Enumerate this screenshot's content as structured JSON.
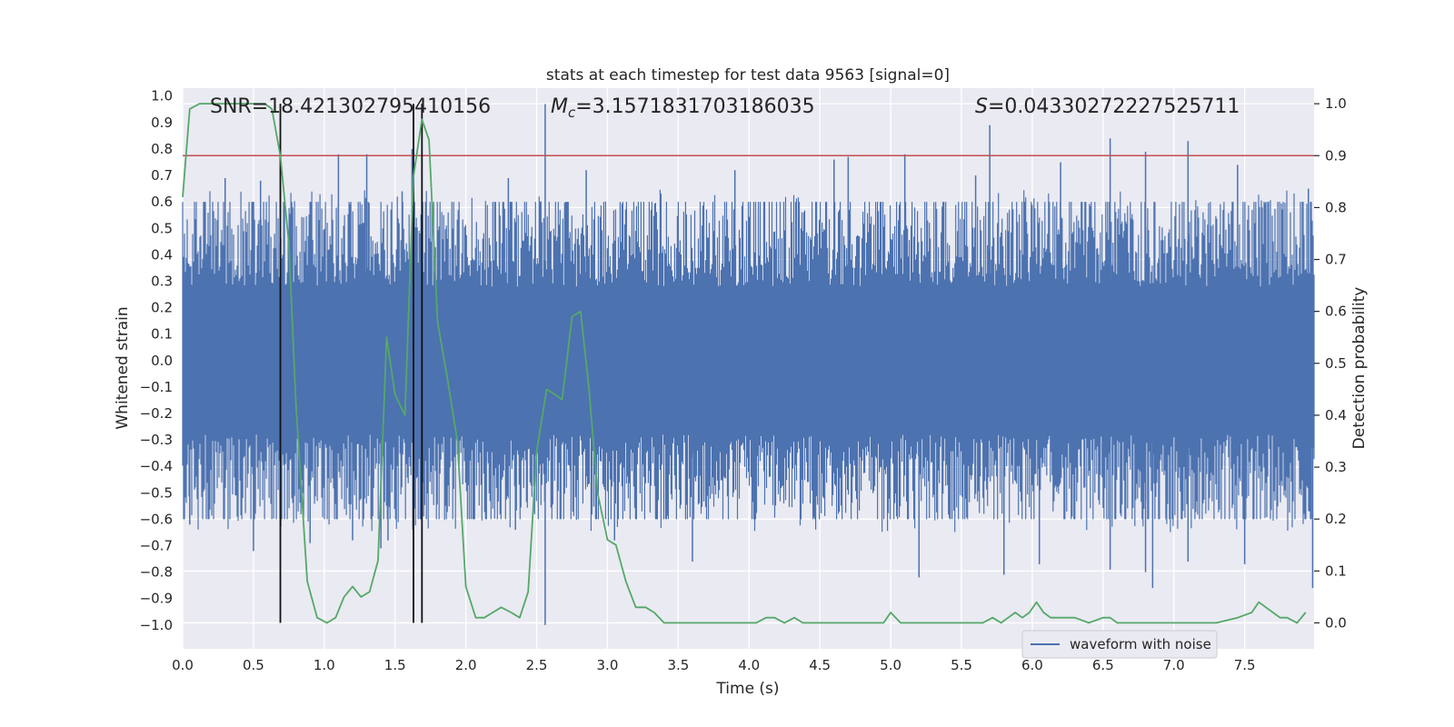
{
  "chart_data": {
    "type": "line",
    "title": "stats at each timestep for test data 9563 [signal=0]",
    "xlabel": "Time (s)",
    "ylabel": "Whitened strain",
    "y2label": "Detection probability",
    "xlim": [
      0,
      7.99
    ],
    "ylim": [
      -1.09,
      1.03
    ],
    "y2lim": [
      -0.05,
      1.03
    ],
    "xticks": [
      0.0,
      0.5,
      1.0,
      1.5,
      2.0,
      2.5,
      3.0,
      3.5,
      4.0,
      4.5,
      5.0,
      5.5,
      6.0,
      6.5,
      7.0,
      7.5
    ],
    "xtick_labels": [
      "0.0",
      "0.5",
      "1.0",
      "1.5",
      "2.0",
      "2.5",
      "3.0",
      "3.5",
      "4.0",
      "4.5",
      "5.0",
      "5.5",
      "6.0",
      "6.5",
      "7.0",
      "7.5"
    ],
    "yticks": [
      1.0,
      0.9,
      0.8,
      0.7,
      0.6,
      0.5,
      0.4,
      0.3,
      0.2,
      0.1,
      0.0,
      -0.1,
      -0.2,
      -0.3,
      -0.4,
      -0.5,
      -0.6,
      -0.7,
      -0.8,
      -0.9,
      -1.0
    ],
    "ytick_labels": [
      "1.0",
      "0.9",
      "0.8",
      "0.7",
      "0.6",
      "0.5",
      "0.4",
      "0.3",
      "0.2",
      "0.1",
      "0.0",
      "−0.1",
      "−0.2",
      "−0.3",
      "−0.4",
      "−0.5",
      "−0.6",
      "−0.7",
      "−0.8",
      "−0.9",
      "−1.0"
    ],
    "y2ticks": [
      1.0,
      0.9,
      0.8,
      0.7,
      0.6,
      0.5,
      0.4,
      0.3,
      0.2,
      0.1,
      0.0
    ],
    "y2tick_labels": [
      "1.0",
      "0.9",
      "0.8",
      "0.7",
      "0.6",
      "0.5",
      "0.4",
      "0.3",
      "0.2",
      "0.1",
      "0.0"
    ],
    "annotations": {
      "snr": "SNR=18.421302795410156",
      "mc_symbol": "M",
      "mc_sub": "c",
      "mc_value": "=3.1571831703186035",
      "s_symbol": "S",
      "s_value": "=0.04330272227525711"
    },
    "threshold": 0.9,
    "vlines": [
      0.69,
      1.63,
      1.69
    ],
    "waveform": {
      "name": "waveform with noise",
      "color": "#4c72b0",
      "duration": 7.99,
      "typical_amplitude": 0.42,
      "peaks_positive": [
        [
          0.3,
          0.69
        ],
        [
          0.55,
          0.68
        ],
        [
          1.1,
          0.78
        ],
        [
          1.3,
          0.78
        ],
        [
          1.55,
          0.64
        ],
        [
          1.62,
          0.8
        ],
        [
          2.3,
          0.69
        ],
        [
          2.56,
          0.97
        ],
        [
          2.85,
          0.72
        ],
        [
          3.9,
          0.72
        ],
        [
          4.6,
          0.76
        ],
        [
          4.7,
          0.77
        ],
        [
          5.1,
          0.78
        ],
        [
          5.6,
          0.7
        ],
        [
          5.7,
          0.89
        ],
        [
          6.2,
          0.75
        ],
        [
          6.55,
          0.84
        ],
        [
          6.8,
          0.79
        ],
        [
          7.1,
          0.83
        ],
        [
          7.45,
          0.74
        ],
        [
          7.95,
          0.65
        ]
      ],
      "peaks_negative": [
        [
          0.05,
          -0.62
        ],
        [
          0.5,
          -0.72
        ],
        [
          0.9,
          -0.69
        ],
        [
          1.2,
          -0.68
        ],
        [
          1.4,
          -0.71
        ],
        [
          1.45,
          -0.68
        ],
        [
          2.56,
          -1.0
        ],
        [
          2.35,
          -0.64
        ],
        [
          3.05,
          -0.68
        ],
        [
          3.6,
          -0.76
        ],
        [
          5.2,
          -0.82
        ],
        [
          5.8,
          -0.81
        ],
        [
          6.05,
          -0.77
        ],
        [
          6.55,
          -0.79
        ],
        [
          6.8,
          -0.8
        ],
        [
          6.85,
          -0.86
        ],
        [
          7.1,
          -0.76
        ],
        [
          7.5,
          -0.77
        ],
        [
          7.98,
          -0.86
        ]
      ]
    },
    "probability": {
      "color": "#55a868",
      "x": [
        0.0,
        0.05,
        0.12,
        0.2,
        0.3,
        0.4,
        0.5,
        0.58,
        0.63,
        0.69,
        0.75,
        0.8,
        0.88,
        0.95,
        1.02,
        1.08,
        1.14,
        1.2,
        1.26,
        1.32,
        1.38,
        1.44,
        1.5,
        1.57,
        1.63,
        1.69,
        1.74,
        1.8,
        1.87,
        1.94,
        2.0,
        2.07,
        2.13,
        2.19,
        2.25,
        2.32,
        2.38,
        2.44,
        2.5,
        2.57,
        2.63,
        2.68,
        2.75,
        2.81,
        2.87,
        2.93,
        3.0,
        3.06,
        3.13,
        3.2,
        3.27,
        3.33,
        3.4,
        3.5,
        3.7,
        3.9,
        4.0,
        4.05,
        4.12,
        4.18,
        4.25,
        4.32,
        4.38,
        4.45,
        4.5,
        4.6,
        4.7,
        4.9,
        4.95,
        5.0,
        5.07,
        5.15,
        5.25,
        5.35,
        5.45,
        5.55,
        5.65,
        5.72,
        5.78,
        5.83,
        5.88,
        5.93,
        5.98,
        6.03,
        6.08,
        6.13,
        6.2,
        6.3,
        6.4,
        6.5,
        6.55,
        6.6,
        6.7,
        6.9,
        7.1,
        7.3,
        7.45,
        7.55,
        7.6,
        7.65,
        7.7,
        7.75,
        7.8,
        7.87,
        7.93
      ],
      "y": [
        0.82,
        0.99,
        1.0,
        1.0,
        1.0,
        1.0,
        1.0,
        1.0,
        0.99,
        0.9,
        0.73,
        0.42,
        0.08,
        0.01,
        0.0,
        0.01,
        0.05,
        0.07,
        0.05,
        0.06,
        0.12,
        0.55,
        0.44,
        0.4,
        0.86,
        0.97,
        0.93,
        0.58,
        0.47,
        0.35,
        0.07,
        0.01,
        0.01,
        0.02,
        0.03,
        0.02,
        0.01,
        0.06,
        0.33,
        0.45,
        0.44,
        0.43,
        0.59,
        0.6,
        0.45,
        0.25,
        0.16,
        0.15,
        0.08,
        0.03,
        0.03,
        0.02,
        0.0,
        0.0,
        0.0,
        0.0,
        0.0,
        0.0,
        0.01,
        0.01,
        0.0,
        0.01,
        0.0,
        0.0,
        0.0,
        0.0,
        0.0,
        0.0,
        0.0,
        0.02,
        0.0,
        0.0,
        0.0,
        0.0,
        0.0,
        0.0,
        0.0,
        0.01,
        0.0,
        0.01,
        0.02,
        0.01,
        0.02,
        0.04,
        0.02,
        0.01,
        0.01,
        0.01,
        0.0,
        0.01,
        0.01,
        0.0,
        0.0,
        0.0,
        0.0,
        0.0,
        0.01,
        0.02,
        0.04,
        0.03,
        0.02,
        0.01,
        0.01,
        0.0,
        0.02
      ]
    },
    "legend": {
      "entry": "waveform with noise",
      "placement": "lower-right"
    },
    "grid": true
  }
}
